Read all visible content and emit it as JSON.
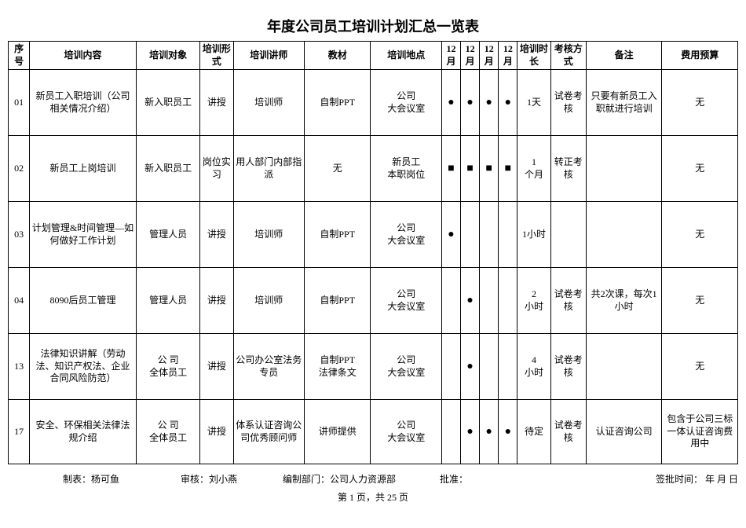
{
  "title": "年度公司员工培训计划汇总一览表",
  "headers": {
    "seq": "序号",
    "content": "培训内容",
    "target": "培训对象",
    "form": "培训形式",
    "teacher": "培训讲师",
    "material": "教材",
    "place": "培训地点",
    "m1": "12月",
    "m2": "12月",
    "m3": "12月",
    "m4": "12月",
    "duration": "培训时长",
    "assess": "考核方式",
    "remark": "备注",
    "budget": "费用预算"
  },
  "rows": [
    {
      "seq": "01",
      "content": "新员工入职培训（公司相关情况介绍）",
      "target": "新入职员工",
      "form": "讲授",
      "teacher": "培训师",
      "material": "自制PPT",
      "place": "公司\n大会议室",
      "m1": "●",
      "m2": "●",
      "m3": "●",
      "m4": "●",
      "duration": "1天",
      "assess": "试卷考核",
      "remark": "只要有新员工入职就进行培训",
      "budget": "无"
    },
    {
      "seq": "02",
      "content": "新员工上岗培训",
      "target": "新入职员工",
      "form": "岗位实习",
      "teacher": "用人部门内部指派",
      "material": "无",
      "place": "新员工\n本职岗位",
      "m1": "■",
      "m2": "■",
      "m3": "■",
      "m4": "■",
      "duration": "1\n个月",
      "assess": "转正考核",
      "remark": "",
      "budget": "无"
    },
    {
      "seq": "03",
      "content": "计划管理&时间管理—如何做好工作计划",
      "target": "管理人员",
      "form": "讲授",
      "teacher": "培训师",
      "material": "自制PPT",
      "place": "公司\n大会议室",
      "m1": "●",
      "m2": "",
      "m3": "",
      "m4": "",
      "duration": "1小时",
      "assess": "",
      "remark": "",
      "budget": "无"
    },
    {
      "seq": "04",
      "content": "8090后员工管理",
      "target": "管理人员",
      "form": "讲授",
      "teacher": "培训师",
      "material": "自制PPT",
      "place": "公司\n大会议室",
      "m1": "",
      "m2": "●",
      "m3": "",
      "m4": "",
      "duration": "2\n小时",
      "assess": "试卷考核",
      "remark": "共2次课，每次1小时",
      "budget": "无"
    },
    {
      "seq": "13",
      "content": "法律知识讲解（劳动法、知识产权法、企业合同风险防范）",
      "target": "公 司\n全体员工",
      "form": "讲授",
      "teacher": "公司办公室法务专员",
      "material": "自制PPT\n法律条文",
      "place": "公司\n大会议室",
      "m1": "",
      "m2": "●",
      "m3": "",
      "m4": "",
      "duration": "4\n小时",
      "assess": "试卷考核",
      "remark": "",
      "budget": "无"
    },
    {
      "seq": "17",
      "content": "安全、环保相关法律法规介绍",
      "target": "公 司\n全体员工",
      "form": "讲授",
      "teacher": "体系认证咨询公司优秀顾问师",
      "material": "讲师提供",
      "place": "公司\n大会议室",
      "m1": "",
      "m2": "●",
      "m3": "●",
      "m4": "●",
      "duration": "待定",
      "assess": "试卷考核",
      "remark": "认证咨询公司",
      "budget": "包含于公司三标一体认证咨询费用中"
    }
  ],
  "footer": {
    "maker_label": "制表：",
    "maker_value": "杨可鱼",
    "auditor_label": "审核：",
    "auditor_value": "刘小燕",
    "dept_label": "编制部门：",
    "dept_value": "公司人力资源部",
    "approve_label": "批准：",
    "time_label": "签批时间：        年     月     日"
  },
  "pager": "第 1 页，共 25 页"
}
